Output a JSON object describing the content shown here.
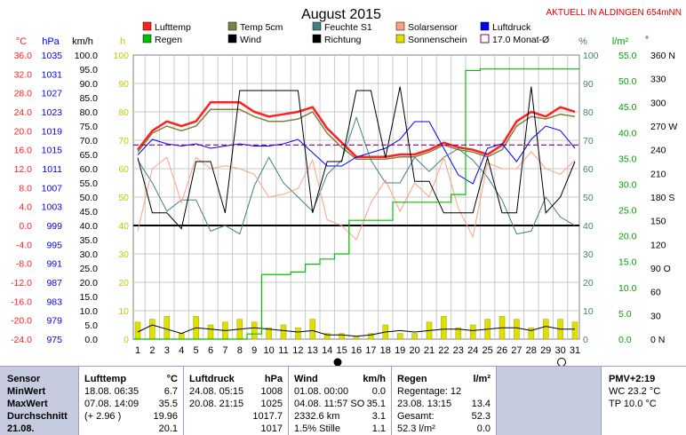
{
  "title": "August 2015",
  "station_note": "AKTUELL IN ALDINGEN 654mNN",
  "units": {
    "temp": "°C",
    "press": "hPa",
    "wind": "km/h",
    "sun": "h",
    "humid": "%",
    "rain": "l/m²",
    "dir": "°"
  },
  "legend": [
    {
      "label": "Lufttemp",
      "color": "#ff2020"
    },
    {
      "label": "Temp 5cm",
      "color": "#808040"
    },
    {
      "label": "Feuchte S1",
      "color": "#408080"
    },
    {
      "label": "Solarsensor",
      "color": "#ffa080"
    },
    {
      "label": "Luftdruck",
      "color": "#0000ff"
    },
    {
      "label": "Regen",
      "color": "#00c000"
    },
    {
      "label": "Wind",
      "color": "#000000"
    },
    {
      "label": "Richtung",
      "color": "#000000"
    },
    {
      "label": "Sonnenschein",
      "color": "#e0e000"
    },
    {
      "label": "17.0 Monat-Ø",
      "color": "#800080"
    }
  ],
  "chart_data": {
    "type": "line",
    "x": [
      1,
      2,
      3,
      4,
      5,
      6,
      7,
      8,
      9,
      10,
      11,
      12,
      13,
      14,
      15,
      16,
      17,
      18,
      19,
      20,
      21,
      22,
      23,
      24,
      25,
      26,
      27,
      28,
      29,
      30,
      31
    ],
    "axes": {
      "temp": {
        "min": -24,
        "max": 36,
        "ticks": [
          "36.0",
          "32.0",
          "28.0",
          "24.0",
          "20.0",
          "16.0",
          "12.0",
          "8.0",
          "4.0",
          "0.0",
          "-4.0",
          "-8.0",
          "-12.0",
          "-16.0",
          "-20.0",
          "-24.0"
        ]
      },
      "press": {
        "min": 975,
        "max": 1039,
        "ticks": [
          "1035",
          "1031",
          "1027",
          "1023",
          "1019",
          "1015",
          "1011",
          "1007",
          "1003",
          "999",
          "995",
          "991",
          "987",
          "983",
          "979",
          "975"
        ]
      },
      "wind": {
        "min": 0,
        "max": 100,
        "ticks": [
          "100.0",
          "95.0",
          "90.0",
          "85.0",
          "80.0",
          "75.0",
          "70.0",
          "65.0",
          "60.0",
          "55.0",
          "50.0",
          "45.0",
          "40.0",
          "35.0",
          "30.0",
          "25.0",
          "20.0",
          "15.0",
          "10.0",
          "5.0",
          "0.0"
        ]
      },
      "sun": {
        "min": 0,
        "max": 100,
        "ticks": [
          "100",
          "90",
          "80",
          "70",
          "60",
          "50",
          "40",
          "30",
          "20",
          "10",
          "0"
        ]
      },
      "humid": {
        "min": 0,
        "max": 100,
        "ticks": [
          "100",
          "90",
          "80",
          "70",
          "60",
          "50",
          "40",
          "30",
          "20",
          "10",
          "0"
        ]
      },
      "rain": {
        "min": 0,
        "max": 55,
        "ticks": [
          "55.0",
          "50.0",
          "45.0",
          "40.0",
          "35.0",
          "30.0",
          "25.0",
          "20.0",
          "15.0",
          "10.0",
          "5.0",
          "0.0"
        ]
      },
      "dir": {
        "min": 0,
        "max": 360,
        "ticks": [
          "360 N",
          "330",
          "300",
          "270 W",
          "240",
          "210",
          "180 S",
          "150",
          "120",
          "90 O",
          "60",
          "30",
          "0 N"
        ]
      }
    },
    "series": [
      {
        "name": "Lufttemp",
        "color": "#ff2020",
        "axis": "temp",
        "width": 2.5,
        "values": [
          16.0,
          20.0,
          22.0,
          21.0,
          22.0,
          26.0,
          26.0,
          26.0,
          24.0,
          23.0,
          23.5,
          24.0,
          25.0,
          20.5,
          17.5,
          14.5,
          14.5,
          14.5,
          15.0,
          15.0,
          16.0,
          17.5,
          16.5,
          16.0,
          15.0,
          17.0,
          22.0,
          24.0,
          23.0,
          25.0,
          24.0
        ]
      },
      {
        "name": "Temp 5cm",
        "color": "#808040",
        "axis": "temp",
        "width": 1.5,
        "values": [
          15.5,
          19.5,
          21.0,
          20.0,
          21.0,
          24.5,
          24.5,
          24.5,
          23.0,
          22.0,
          22.0,
          22.5,
          24.0,
          19.5,
          16.5,
          14.0,
          14.0,
          14.0,
          14.5,
          14.5,
          15.5,
          17.0,
          16.0,
          15.5,
          14.5,
          16.0,
          21.0,
          23.0,
          22.5,
          23.5,
          23.0
        ]
      },
      {
        "name": "Luftdruck",
        "color": "#0000ff",
        "axis": "press",
        "width": 1,
        "values": [
          1016.5,
          1020,
          1019,
          1018.5,
          1019,
          1018,
          1018.5,
          1019,
          1018.5,
          1018.5,
          1019,
          1020,
          1017,
          1014,
          1014,
          1016,
          1017,
          1018,
          1020,
          1024,
          1024,
          1018,
          1012,
          1010,
          1018,
          1019,
          1015,
          1020,
          1023,
          1022,
          1018
        ]
      },
      {
        "name": "Feuchte S1",
        "color": "#408080",
        "axis": "humid",
        "width": 1,
        "values": [
          63,
          55,
          45,
          49,
          49,
          38,
          40,
          37,
          54,
          64,
          55,
          50,
          45,
          58,
          63,
          78,
          63,
          55,
          55,
          64,
          59,
          64,
          67,
          63,
          57,
          49,
          37,
          38,
          50,
          43,
          40
        ]
      },
      {
        "name": "Solarsensor",
        "color": "#ffa080",
        "axis": "humid",
        "width": 1,
        "values": [
          38,
          60,
          64,
          48,
          64,
          60,
          61,
          60,
          58,
          50,
          51,
          53,
          63,
          42,
          40,
          35,
          48,
          56,
          45,
          55,
          50,
          64,
          46,
          36,
          62,
          60,
          60,
          66,
          60,
          58,
          63
        ]
      },
      {
        "name": "Wind",
        "color": "#000000",
        "axis": "wind",
        "width": 1,
        "values": [
          2.5,
          5.0,
          3.5,
          2.0,
          4.0,
          3.5,
          3.0,
          3.5,
          4.0,
          3.5,
          3.0,
          2.5,
          3.0,
          1.5,
          1.5,
          1.0,
          1.5,
          2.5,
          3.0,
          2.5,
          3.0,
          3.5,
          3.5,
          3.0,
          3.5,
          4.0,
          4.0,
          3.0,
          4.5,
          3.5,
          3.5
        ]
      },
      {
        "name": "Richtung",
        "color": "#000000",
        "axis": "dir",
        "width": 1,
        "values": [
          230,
          160,
          160,
          140,
          225,
          225,
          160,
          315,
          315,
          315,
          315,
          315,
          160,
          225,
          225,
          315,
          315,
          230,
          320,
          200,
          200,
          160,
          160,
          160,
          230,
          160,
          160,
          320,
          160,
          180,
          225
        ]
      },
      {
        "name": "Regen",
        "color": "#00c000",
        "axis": "rain",
        "width": 1.2,
        "cumulative": [
          0,
          0,
          0,
          0,
          0,
          0,
          0,
          0,
          1,
          12.5,
          12.5,
          13.0,
          14.5,
          15.5,
          16.5,
          23.0,
          23.0,
          23.0,
          26.5,
          26.5,
          26.5,
          26.5,
          28.0,
          52.0,
          52.3,
          52.3,
          52.3,
          52.3,
          52.3,
          52.3,
          52.3
        ]
      },
      {
        "name": "Sonnenschein",
        "color": "#e0e000",
        "axis": "sun",
        "kind": "bars",
        "values": [
          6,
          7,
          8,
          2,
          8,
          5,
          6,
          7,
          6,
          4,
          5,
          4,
          7,
          2,
          2,
          1,
          2,
          5,
          2,
          2,
          6,
          8,
          4,
          5,
          7,
          8,
          7,
          4,
          7,
          7,
          6
        ]
      },
      {
        "name": "17.0 Monat-Ø",
        "color": "#800080",
        "axis": "temp",
        "kind": "hline",
        "value": 17.0
      }
    ],
    "zero_line_temp": 0.0
  },
  "panel": {
    "sensor": {
      "head": "Sensor",
      "rows": [
        "MinWert",
        "MaxWert",
        "Durchschnitt",
        "21.08."
      ]
    },
    "lufttemp": {
      "head": "Lufttemp",
      "unit": "°C",
      "rows": [
        [
          "18.08.  06:35",
          "6.7"
        ],
        [
          "07.08.  14:09",
          "35.5"
        ],
        [
          "(+ 2.96 )",
          "19.96"
        ],
        [
          "",
          "20.1"
        ]
      ]
    },
    "luftdruck": {
      "head": "Luftdruck",
      "unit": "hPa",
      "rows": [
        [
          "24.08.  05:15",
          "1008"
        ],
        [
          "20.08.  21:15",
          "1025"
        ],
        [
          "",
          "1017.7"
        ],
        [
          "",
          "1017"
        ]
      ]
    },
    "wind": {
      "head": "Wind",
      "unit": "km/h",
      "rows": [
        [
          "01.08.  00:00",
          "0.0"
        ],
        [
          "04.08.  11:57 SO",
          "35.1"
        ],
        [
          "2332.6 km",
          "3.1"
        ],
        [
          "1.5% Stille",
          "1.1"
        ]
      ]
    },
    "regen": {
      "head": "Regen",
      "unit": "l/m²",
      "rows": [
        [
          "Regentage: 12",
          ""
        ],
        [
          "23.08.  13:15",
          "13.4"
        ],
        [
          "Gesamt:",
          "52.3"
        ],
        [
          "52.3 l/m²",
          "0.0"
        ]
      ]
    },
    "pmv": {
      "head": "PMV+2:19",
      "rows": [
        "WC 23.2 °C",
        "TP 10.0 °C"
      ]
    }
  }
}
